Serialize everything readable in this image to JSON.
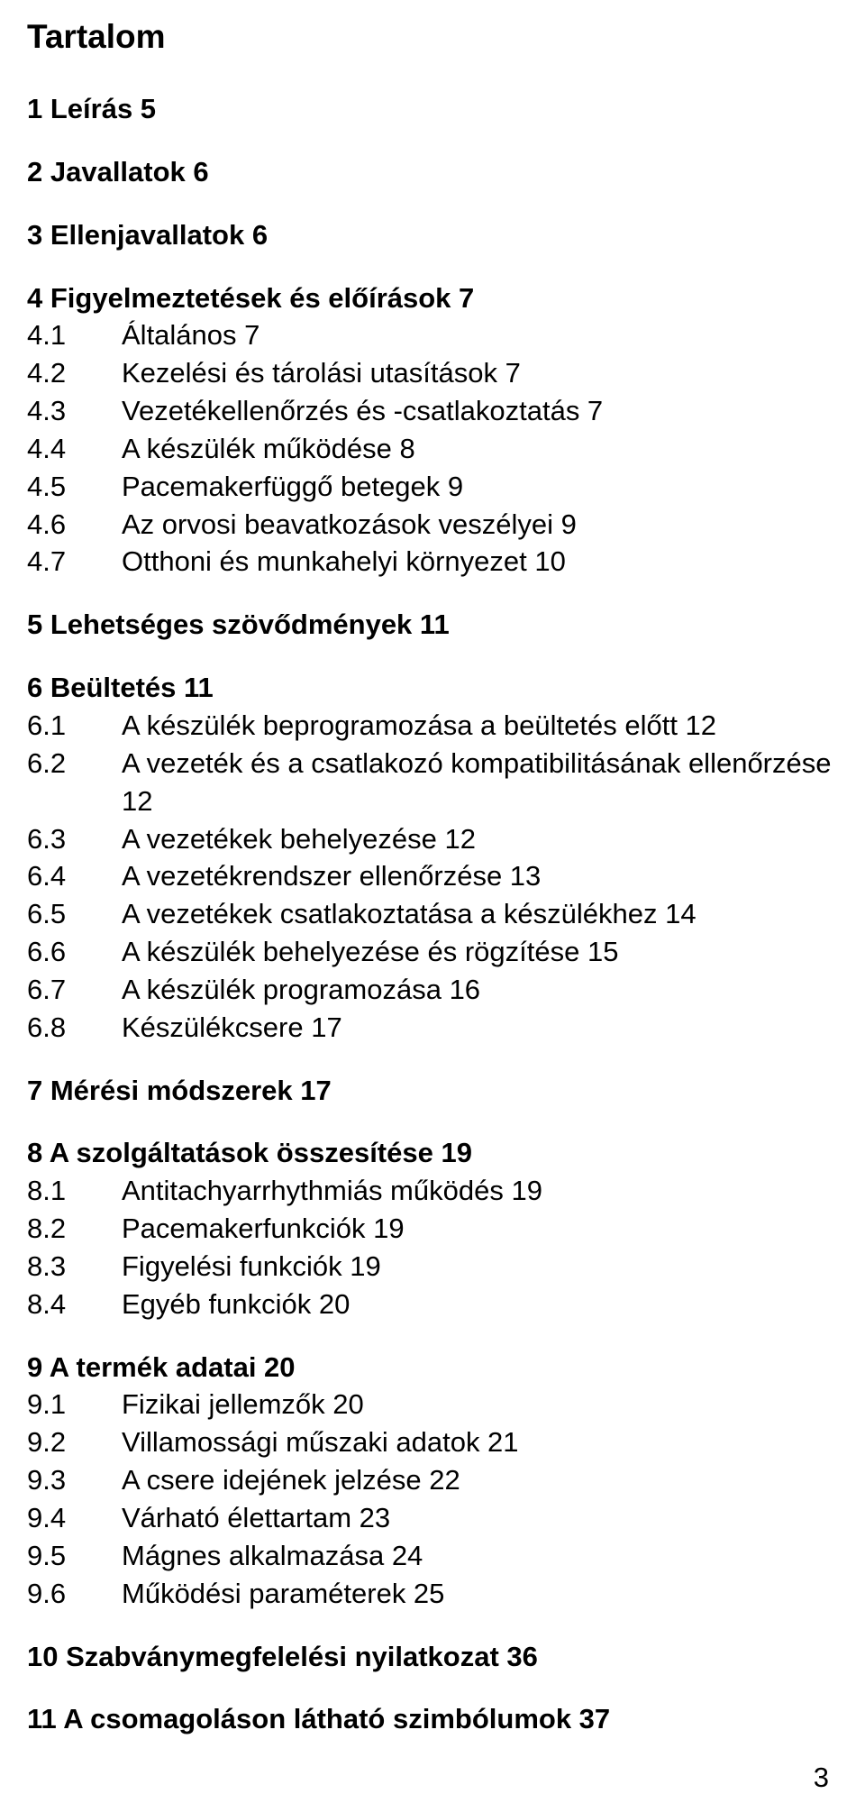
{
  "title": "Tartalom",
  "page_number": "3",
  "sections": [
    {
      "num": "1",
      "title": "Leírás",
      "page": "5"
    },
    {
      "num": "2",
      "title": "Javallatok",
      "page": "6"
    },
    {
      "num": "3",
      "title": "Ellenjavallatok",
      "page": "6"
    },
    {
      "num": "4",
      "title": "Figyelmeztetések és előírások",
      "page": "7",
      "sub": [
        {
          "num": "4.1",
          "title": "Általános",
          "page": "7"
        },
        {
          "num": "4.2",
          "title": "Kezelési és tárolási utasítások",
          "page": "7"
        },
        {
          "num": "4.3",
          "title": "Vezetékellenőrzés és -csatlakoztatás",
          "page": "7"
        },
        {
          "num": "4.4",
          "title": "A készülék működése",
          "page": "8"
        },
        {
          "num": "4.5",
          "title": "Pacemakerfüggő betegek",
          "page": "9"
        },
        {
          "num": "4.6",
          "title": "Az orvosi beavatkozások veszélyei",
          "page": "9"
        },
        {
          "num": "4.7",
          "title": "Otthoni és munkahelyi környezet",
          "page": "10"
        }
      ]
    },
    {
      "num": "5",
      "title": "Lehetséges szövődmények",
      "page": "11"
    },
    {
      "num": "6",
      "title": "Beültetés",
      "page": "11",
      "sub": [
        {
          "num": "6.1",
          "title": "A készülék beprogramozása a beültetés előtt",
          "page": "12"
        },
        {
          "num": "6.2",
          "title": "A vezeték és a csatlakozó kompatibilitásának ellenőrzése",
          "page": "12"
        },
        {
          "num": "6.3",
          "title": "A vezetékek behelyezése",
          "page": "12"
        },
        {
          "num": "6.4",
          "title": "A vezetékrendszer ellenőrzése",
          "page": "13"
        },
        {
          "num": "6.5",
          "title": "A vezetékek csatlakoztatása a készülékhez",
          "page": "14"
        },
        {
          "num": "6.6",
          "title": "A készülék behelyezése és rögzítése",
          "page": "15"
        },
        {
          "num": "6.7",
          "title": "A készülék programozása",
          "page": "16"
        },
        {
          "num": "6.8",
          "title": "Készülékcsere",
          "page": "17"
        }
      ]
    },
    {
      "num": "7",
      "title": "Mérési módszerek",
      "page": "17"
    },
    {
      "num": "8",
      "title": "A szolgáltatások összesítése",
      "page": "19",
      "sub": [
        {
          "num": "8.1",
          "title": "Antitachyarrhythmiás működés",
          "page": "19"
        },
        {
          "num": "8.2",
          "title": "Pacemakerfunkciók",
          "page": "19"
        },
        {
          "num": "8.3",
          "title": "Figyelési funkciók",
          "page": "19"
        },
        {
          "num": "8.4",
          "title": "Egyéb funkciók",
          "page": "20"
        }
      ]
    },
    {
      "num": "9",
      "title": "A termék adatai",
      "page": "20",
      "sub": [
        {
          "num": "9.1",
          "title": "Fizikai jellemzők",
          "page": "20"
        },
        {
          "num": "9.2",
          "title": "Villamossági műszaki adatok",
          "page": "21"
        },
        {
          "num": "9.3",
          "title": "A csere idejének jelzése",
          "page": "22"
        },
        {
          "num": "9.4",
          "title": "Várható élettartam",
          "page": "23"
        },
        {
          "num": "9.5",
          "title": "Mágnes alkalmazása",
          "page": "24"
        },
        {
          "num": "9.6",
          "title": "Működési paraméterek",
          "page": "25"
        }
      ]
    },
    {
      "num": "10",
      "title": "Szabványmegfelelési nyilatkozat",
      "page": "36"
    },
    {
      "num": "11",
      "title": "A csomagoláson látható szimbólumok",
      "page": "37"
    }
  ]
}
